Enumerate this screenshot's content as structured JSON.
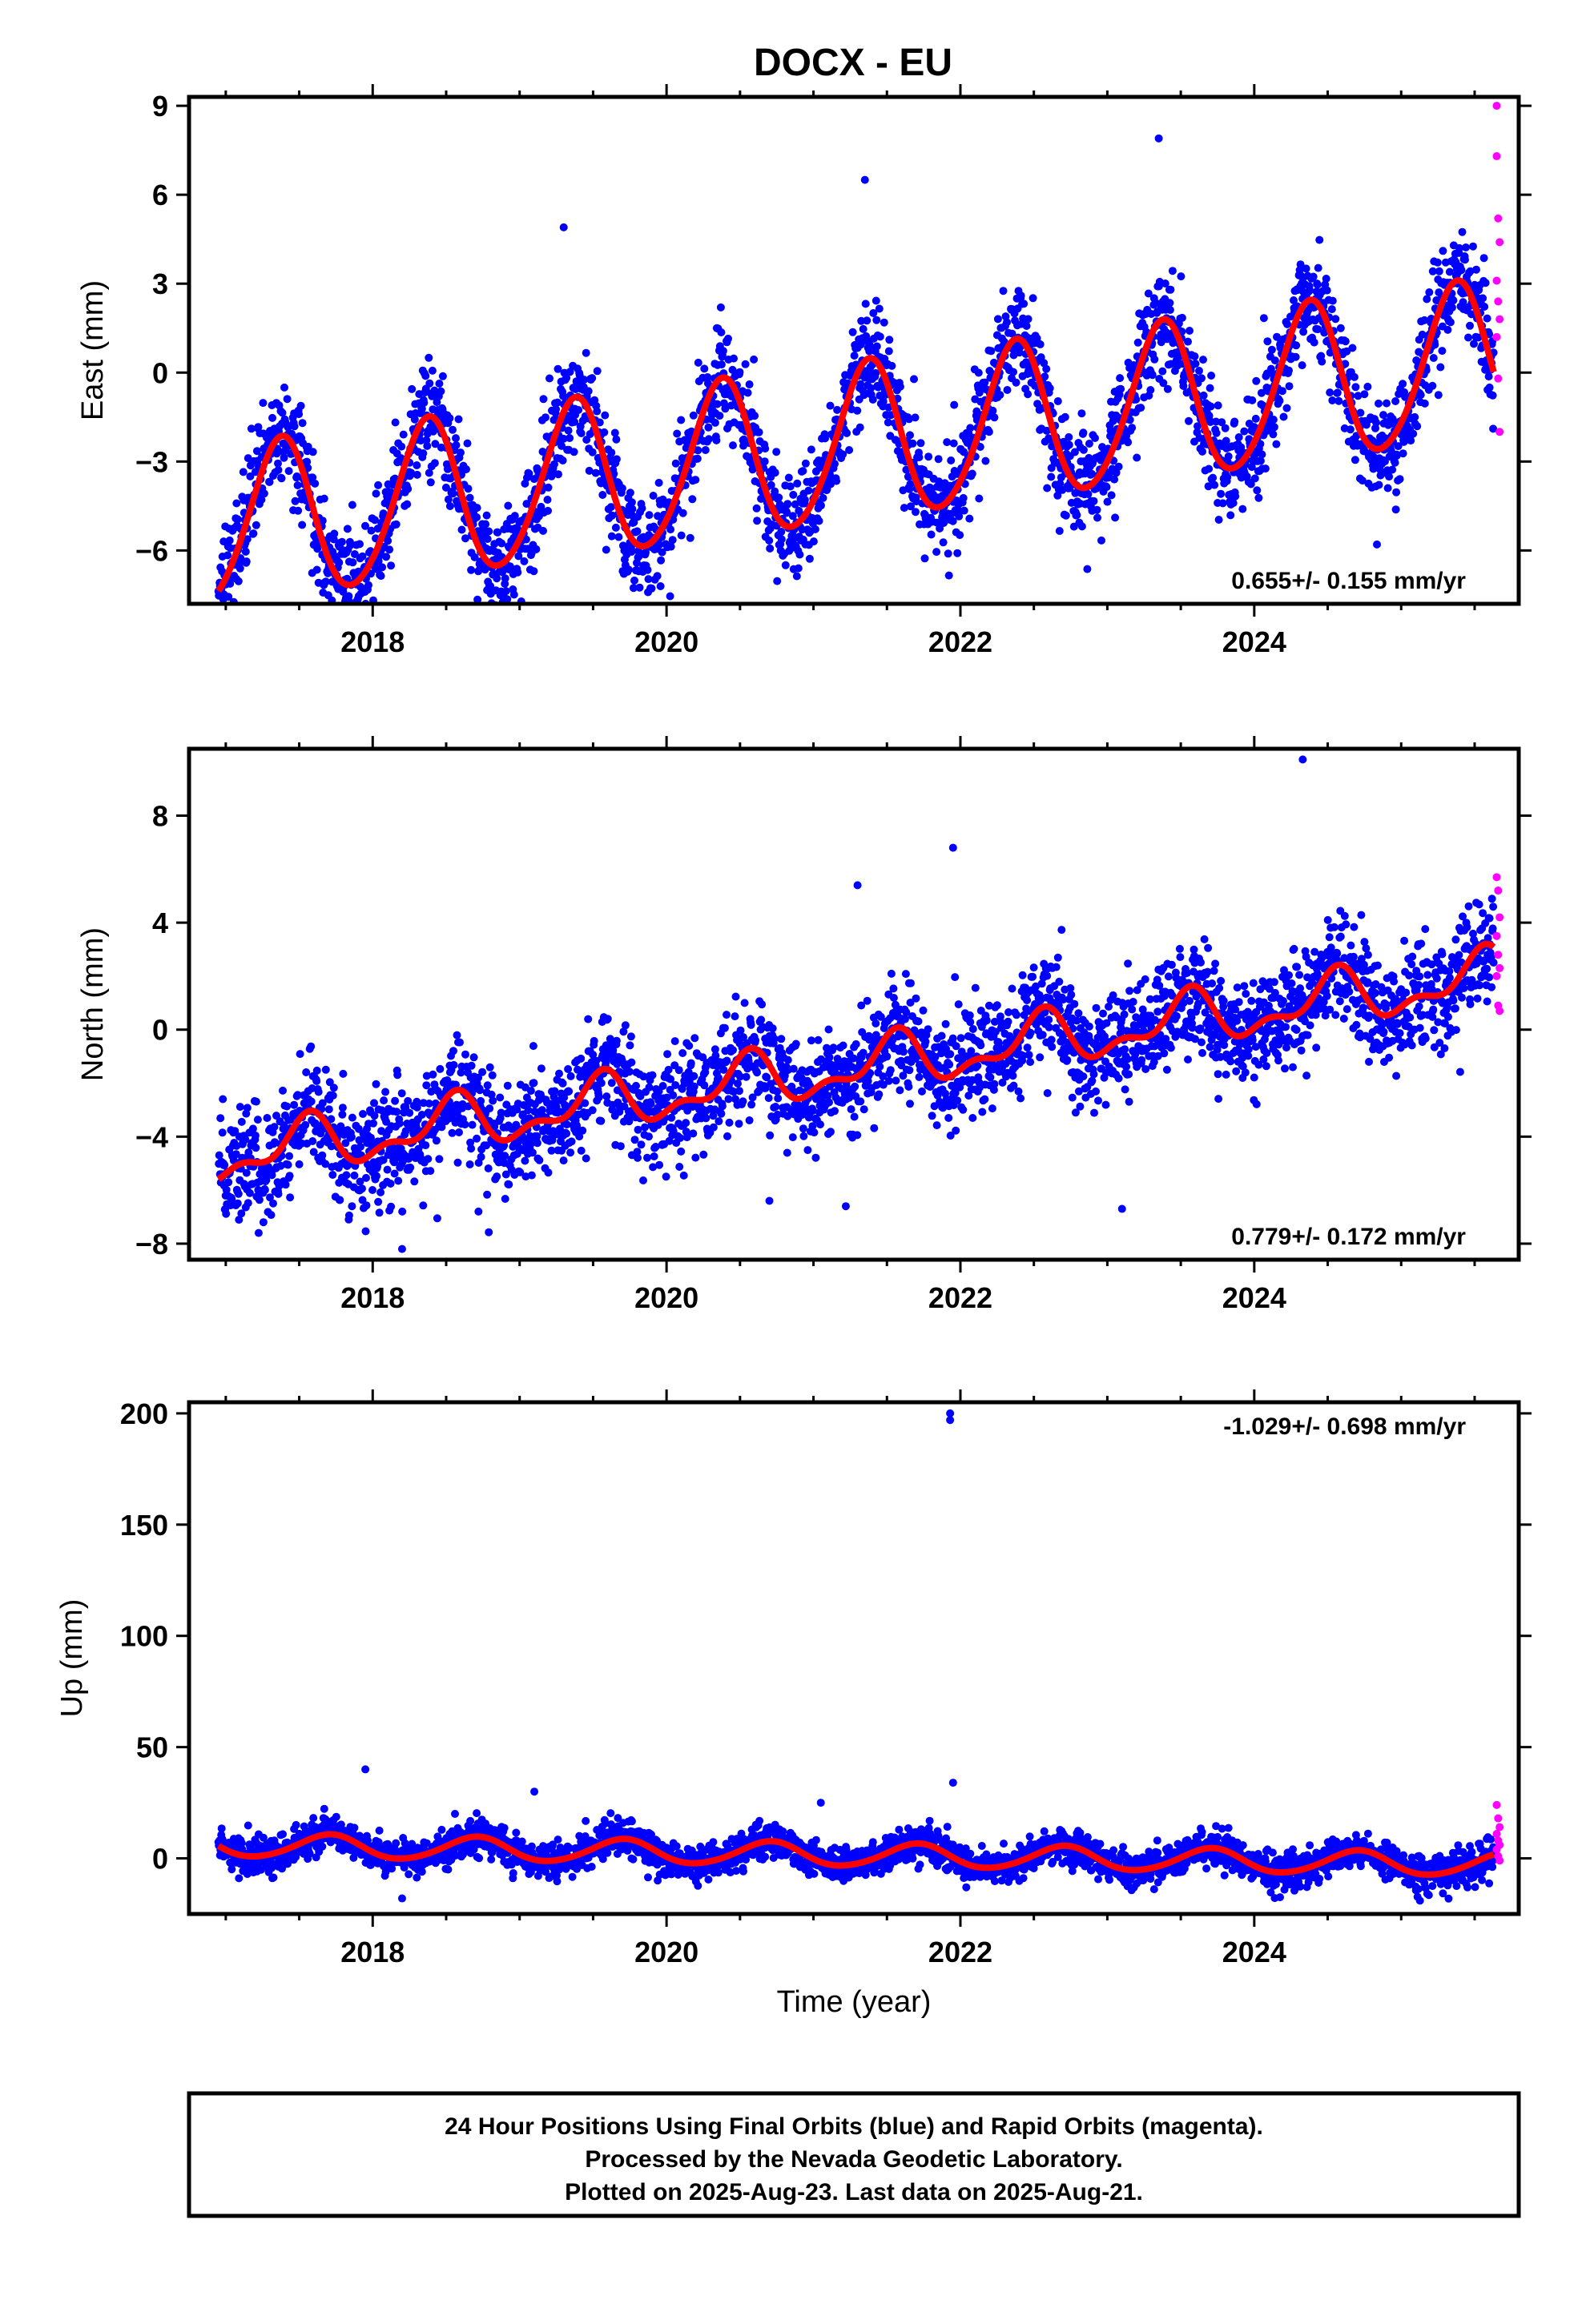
{
  "title": "DOCX - EU",
  "footer": {
    "lines": [
      "24 Hour Positions Using Final Orbits (blue) and Rapid Orbits (magenta).",
      "Processed by the Nevada Geodetic Laboratory.",
      "Plotted on 2025-Aug-23. Last data on 2025-Aug-21."
    ]
  },
  "colors": {
    "final_orbits": "#0000ff",
    "rapid_orbits": "#ff00ff",
    "fit": "#ff0000"
  },
  "chart_data": [
    {
      "type": "scatter",
      "name": "east",
      "ylabel": "East (mm)",
      "xlabel": "",
      "xlim": [
        2016.75,
        2025.8
      ],
      "ylim": [
        -7.8,
        9.3
      ],
      "x_ticks": [
        2018,
        2020,
        2022,
        2024
      ],
      "y_ticks": [
        -6,
        -3,
        0,
        3,
        6,
        9
      ],
      "rate_label": "0.655+/- 0.155 mm/yr",
      "rate_position": "bottom-right",
      "model": {
        "offset": -2.43,
        "rate": 0.655,
        "annual_amplitude": 2.65,
        "annual_peak_month": "May",
        "semiannual_amplitude": 0.25,
        "noise_sd": 0.9,
        "start": 2016.95,
        "end": 2025.63
      },
      "outliers": [
        [
          2024.97,
          -2.8
        ],
        [
          2023.35,
          7.9
        ],
        [
          2021.35,
          6.5
        ],
        [
          2019.3,
          4.9
        ],
        [
          2018.8,
          -7.2
        ]
      ],
      "rapid_points": [
        [
          2025.65,
          9.0
        ],
        [
          2025.65,
          7.3
        ],
        [
          2025.66,
          5.2
        ],
        [
          2025.67,
          4.4
        ],
        [
          2025.65,
          3.1
        ],
        [
          2025.66,
          2.4
        ],
        [
          2025.67,
          1.8
        ],
        [
          2025.65,
          1.2
        ],
        [
          2025.66,
          -0.2
        ],
        [
          2025.67,
          -2.0
        ]
      ]
    },
    {
      "type": "scatter",
      "name": "north",
      "ylabel": "North (mm)",
      "xlabel": "",
      "xlim": [
        2016.75,
        2025.8
      ],
      "ylim": [
        -8.6,
        10.5
      ],
      "x_ticks": [
        2018,
        2020,
        2022,
        2024
      ],
      "y_ticks": [
        -8,
        -4,
        0,
        4,
        8
      ],
      "rate_label": "0.779+/- 0.172 mm/yr",
      "rate_position": "bottom-right",
      "model": {
        "offset": -1.4,
        "rate": 0.779,
        "annual_amplitude": 0.85,
        "annual_peak_month": "July",
        "semiannual_amplitude": 0.45,
        "noise_sd": 1.0,
        "start": 2016.95,
        "end": 2025.63
      },
      "outliers": [
        [
          2024.33,
          10.1
        ],
        [
          2021.95,
          6.8
        ],
        [
          2021.3,
          5.4
        ],
        [
          2023.1,
          -6.7
        ],
        [
          2020.7,
          -6.4
        ],
        [
          2021.22,
          -6.6
        ],
        [
          2018.2,
          -8.2
        ],
        [
          2018.72,
          -6.8
        ]
      ],
      "rapid_points": [
        [
          2025.65,
          5.7
        ],
        [
          2025.66,
          5.2
        ],
        [
          2025.67,
          4.2
        ],
        [
          2025.65,
          3.5
        ],
        [
          2025.66,
          2.8
        ],
        [
          2025.67,
          2.3
        ],
        [
          2025.65,
          2.0
        ],
        [
          2025.66,
          0.9
        ],
        [
          2025.67,
          0.7
        ]
      ]
    },
    {
      "type": "scatter",
      "name": "up",
      "ylabel": "Up (mm)",
      "xlabel": "Time (year)",
      "xlim": [
        2016.75,
        2025.8
      ],
      "ylim": [
        -25,
        205
      ],
      "x_ticks": [
        2018,
        2020,
        2022,
        2024
      ],
      "y_ticks": [
        0,
        50,
        100,
        150,
        200
      ],
      "rate_label": "-1.029+/- 0.698 mm/yr",
      "rate_position": "top-right",
      "model": {
        "offset": 1.5,
        "rate": -1.029,
        "annual_amplitude": 5.2,
        "annual_peak_month": "September",
        "semiannual_amplitude": 0.5,
        "noise_sd": 4.0,
        "start": 2016.95,
        "end": 2025.63
      },
      "outliers": [
        [
          2021.93,
          200
        ],
        [
          2021.93,
          197
        ],
        [
          2017.95,
          40
        ],
        [
          2019.1,
          30
        ],
        [
          2021.95,
          34
        ],
        [
          2021.05,
          25
        ],
        [
          2018.2,
          -18
        ]
      ],
      "rapid_points": [
        [
          2025.65,
          24
        ],
        [
          2025.66,
          18
        ],
        [
          2025.67,
          14
        ],
        [
          2025.65,
          11
        ],
        [
          2025.66,
          8
        ],
        [
          2025.67,
          6
        ],
        [
          2025.65,
          4
        ],
        [
          2025.66,
          1
        ],
        [
          2025.67,
          -1
        ]
      ]
    }
  ]
}
